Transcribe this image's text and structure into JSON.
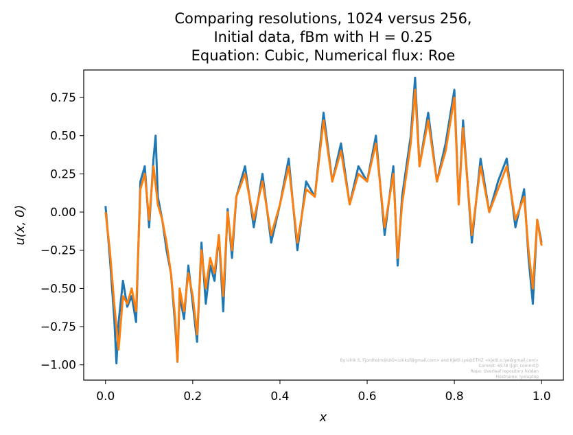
{
  "chart_data": {
    "type": "line",
    "title_lines": [
      "Comparing resolutions, 1024 versus 256,",
      "Initial data, fBm with H = 0.25",
      "Equation: Cubic, Numerical flux: Roe"
    ],
    "xlabel": "x",
    "ylabel": "u(x, 0)",
    "xlim": [
      -0.05,
      1.05
    ],
    "ylim": [
      -1.1,
      0.93
    ],
    "x_ticks": [
      {
        "value": 0.0,
        "label": "0.0"
      },
      {
        "value": 0.2,
        "label": "0.2"
      },
      {
        "value": 0.4,
        "label": "0.4"
      },
      {
        "value": 0.6,
        "label": "0.6"
      },
      {
        "value": 0.8,
        "label": "0.8"
      },
      {
        "value": 1.0,
        "label": "1.0"
      }
    ],
    "y_ticks": [
      {
        "value": 0.75,
        "label": "0.75"
      },
      {
        "value": 0.5,
        "label": "0.50"
      },
      {
        "value": 0.25,
        "label": "0.25"
      },
      {
        "value": 0.0,
        "label": "0.00"
      },
      {
        "value": -0.25,
        "label": "−0.25"
      },
      {
        "value": -0.5,
        "label": "−0.50"
      },
      {
        "value": -0.75,
        "label": "−0.75"
      },
      {
        "value": -1.0,
        "label": "−1.00"
      }
    ],
    "grid": false,
    "legend": "none",
    "series": [
      {
        "color": "#1f77b4",
        "linewidth": 3,
        "x": [
          0.0,
          0.01,
          0.02,
          0.025,
          0.03,
          0.04,
          0.05,
          0.06,
          0.07,
          0.08,
          0.09,
          0.1,
          0.11,
          0.115,
          0.12,
          0.13,
          0.14,
          0.15,
          0.16,
          0.165,
          0.17,
          0.18,
          0.19,
          0.2,
          0.21,
          0.22,
          0.23,
          0.24,
          0.25,
          0.26,
          0.27,
          0.28,
          0.29,
          0.3,
          0.32,
          0.34,
          0.36,
          0.38,
          0.4,
          0.42,
          0.44,
          0.46,
          0.48,
          0.5,
          0.52,
          0.54,
          0.56,
          0.58,
          0.6,
          0.62,
          0.64,
          0.66,
          0.67,
          0.68,
          0.7,
          0.71,
          0.72,
          0.74,
          0.76,
          0.78,
          0.8,
          0.81,
          0.82,
          0.84,
          0.86,
          0.88,
          0.9,
          0.92,
          0.94,
          0.96,
          0.97,
          0.98,
          0.99,
          1.0
        ],
        "y": [
          0.04,
          -0.3,
          -0.7,
          -0.99,
          -0.72,
          -0.45,
          -0.62,
          -0.55,
          -0.72,
          0.2,
          0.3,
          -0.1,
          0.35,
          0.5,
          0.1,
          -0.05,
          -0.25,
          -0.4,
          -0.75,
          -0.98,
          -0.55,
          -0.7,
          -0.35,
          -0.6,
          -0.85,
          -0.2,
          -0.6,
          -0.35,
          -0.45,
          -0.15,
          -0.65,
          0.02,
          -0.3,
          0.1,
          0.3,
          -0.1,
          0.25,
          -0.2,
          0.05,
          0.35,
          -0.25,
          0.2,
          0.1,
          0.65,
          0.2,
          0.45,
          0.05,
          0.3,
          0.2,
          0.5,
          -0.15,
          0.3,
          -0.35,
          0.1,
          0.5,
          0.88,
          0.3,
          0.65,
          0.2,
          0.45,
          0.8,
          0.05,
          0.6,
          -0.2,
          0.35,
          0.0,
          0.2,
          0.35,
          -0.1,
          0.15,
          -0.3,
          -0.6,
          -0.05,
          -0.2
        ]
      },
      {
        "color": "#ff7f0e",
        "linewidth": 3,
        "x": [
          0.0,
          0.01,
          0.02,
          0.03,
          0.04,
          0.05,
          0.06,
          0.07,
          0.08,
          0.09,
          0.1,
          0.11,
          0.12,
          0.13,
          0.14,
          0.15,
          0.16,
          0.165,
          0.17,
          0.18,
          0.19,
          0.2,
          0.21,
          0.22,
          0.23,
          0.24,
          0.25,
          0.26,
          0.27,
          0.28,
          0.29,
          0.3,
          0.32,
          0.34,
          0.36,
          0.38,
          0.4,
          0.42,
          0.44,
          0.46,
          0.48,
          0.5,
          0.52,
          0.54,
          0.56,
          0.58,
          0.6,
          0.62,
          0.64,
          0.66,
          0.67,
          0.68,
          0.7,
          0.71,
          0.72,
          0.74,
          0.76,
          0.78,
          0.8,
          0.81,
          0.82,
          0.84,
          0.86,
          0.88,
          0.9,
          0.92,
          0.94,
          0.96,
          0.97,
          0.98,
          0.99,
          1.0
        ],
        "y": [
          0.0,
          -0.25,
          -0.6,
          -0.9,
          -0.55,
          -0.6,
          -0.5,
          -0.65,
          0.15,
          0.25,
          -0.05,
          0.3,
          0.05,
          -0.05,
          -0.2,
          -0.4,
          -0.7,
          -0.98,
          -0.5,
          -0.65,
          -0.4,
          -0.55,
          -0.8,
          -0.25,
          -0.5,
          -0.3,
          -0.4,
          -0.15,
          -0.55,
          0.0,
          -0.25,
          0.1,
          0.25,
          -0.05,
          0.2,
          -0.15,
          0.05,
          0.3,
          -0.2,
          0.15,
          0.1,
          0.6,
          0.2,
          0.4,
          0.05,
          0.25,
          0.2,
          0.45,
          -0.1,
          0.25,
          -0.3,
          0.05,
          0.45,
          0.8,
          0.3,
          0.6,
          0.2,
          0.4,
          0.75,
          0.05,
          0.55,
          -0.15,
          0.3,
          0.0,
          0.15,
          0.3,
          -0.05,
          0.1,
          -0.25,
          -0.5,
          -0.05,
          -0.22
        ]
      }
    ]
  },
  "credit": {
    "lines": [
      "By Ulrik S. Fjordholm@UiO<ulriksf@gmail.com> and Kjetil Lye@ETHZ <kjetil.o.lye@gmail.com>",
      "Commit: 6578 ([git_commit])",
      "Repo: Overleaf repository hidden",
      "Hostname: lyelaptop"
    ]
  }
}
